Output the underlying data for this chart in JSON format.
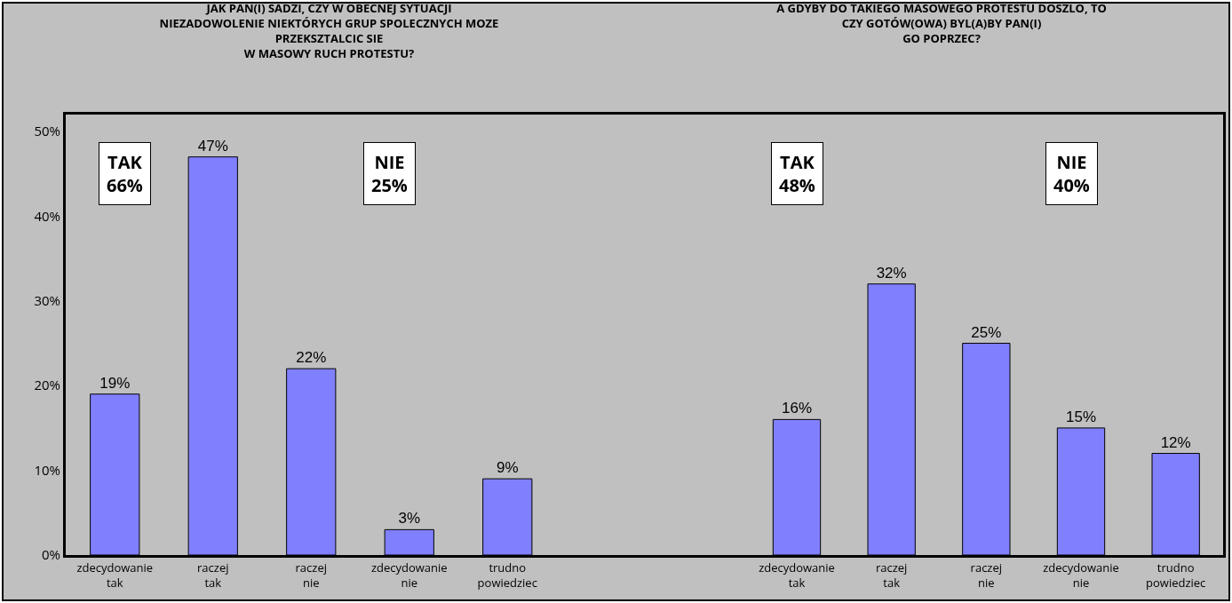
{
  "chart_data": [
    {
      "type": "bar",
      "title": "JAK PAN(I) SADZI, CZY W OBECNEJ SYTUACJI\nNIEZADOWOLENIE NIEKTÓRYCH GRUP SPOLECZNYCH MOZE\nPRZEKSZTALCIC SIE\nW MASOWY RUCH PROTESTU?",
      "categories": [
        "zdecydowanie\ntak",
        "raczej\ntak",
        "raczej\nnie",
        "zdecydowanie\nnie",
        "trudno\npowiedziec"
      ],
      "values": [
        19,
        47,
        22,
        3,
        9
      ],
      "value_labels": [
        "19%",
        "47%",
        "22%",
        "3%",
        "9%"
      ],
      "color": "#8080ff",
      "ylim": [
        0,
        52
      ],
      "yticks": [
        {
          "value": 0,
          "label": "0%"
        },
        {
          "value": 10,
          "label": "10%"
        },
        {
          "value": 20,
          "label": "20%"
        },
        {
          "value": 30,
          "label": "30%"
        },
        {
          "value": 40,
          "label": "40%"
        },
        {
          "value": 50,
          "label": "50%"
        }
      ],
      "grid": false,
      "legend": false,
      "annotations": [
        "TAK\n66%",
        "NIE\n25%"
      ]
    },
    {
      "type": "bar",
      "title": "A GDYBY DO TAKIEGO MASOWEGO PROTESTU DOSZLO, TO\nCZY GOTÓW(OWA) BYL(A)BY PAN(I)\nGO POPRZEC?",
      "categories": [
        "zdecydowanie\ntak",
        "raczej\ntak",
        "raczej\nnie",
        "zdecydowanie\nnie",
        "trudno\npowiedziec"
      ],
      "values": [
        16,
        32,
        25,
        15,
        12
      ],
      "value_labels": [
        "16%",
        "32%",
        "25%",
        "15%",
        "12%"
      ],
      "color": "#8080ff",
      "ylim": [
        0,
        52
      ],
      "tick_labels": "x",
      "grid": false,
      "legend": false,
      "annotations": [
        "TAK\n48%",
        "NIE\n40%"
      ]
    }
  ]
}
